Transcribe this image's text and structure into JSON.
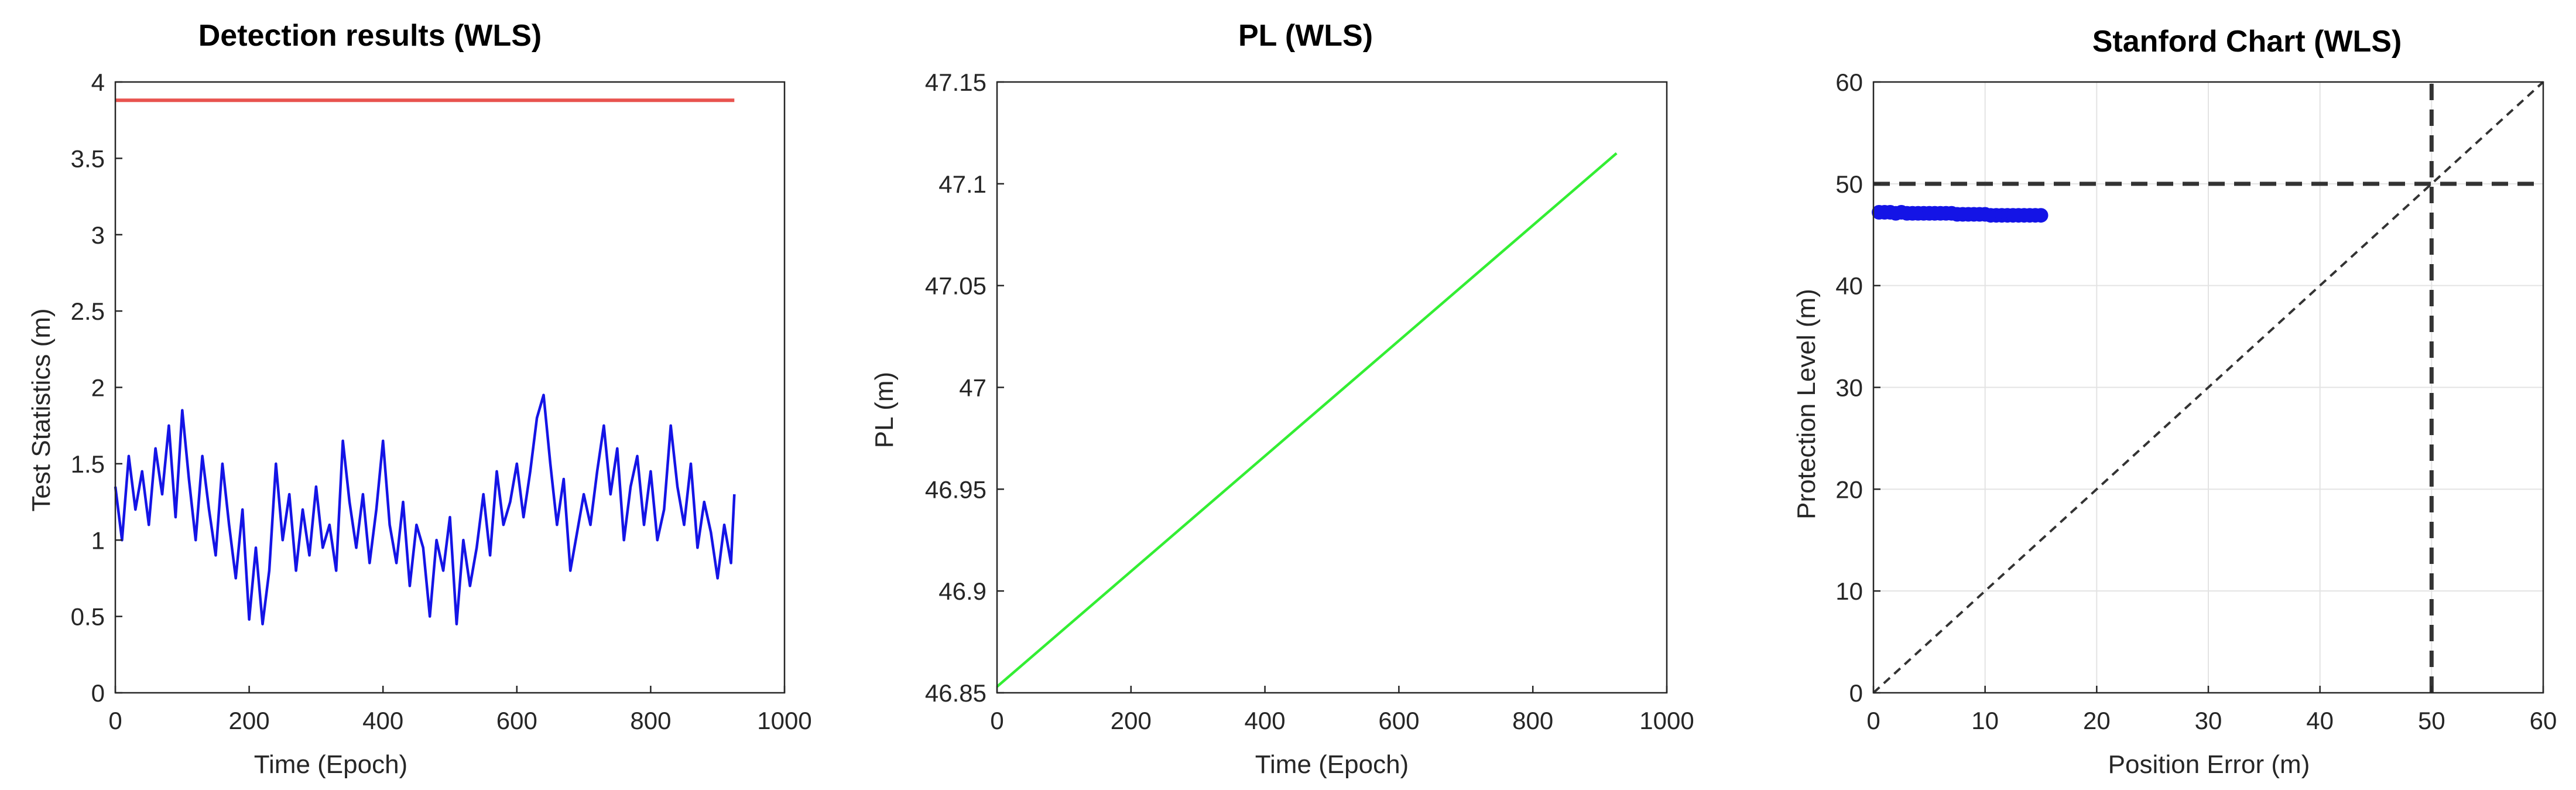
{
  "chart_data": [
    {
      "type": "line",
      "title": "Detection results (WLS)",
      "xlabel": "Time (Epoch)",
      "ylabel": "Test Statistics (m)",
      "xlim": [
        0,
        1000
      ],
      "ylim": [
        0,
        4
      ],
      "xticks": [
        "0",
        "200",
        "400",
        "600",
        "800",
        "1000"
      ],
      "yticks": [
        "0",
        "0.5",
        "1",
        "1.5",
        "2",
        "2.5",
        "3",
        "3.5",
        "4"
      ],
      "grid": false,
      "series": [
        {
          "color": "#e8534f",
          "style": "solid",
          "x": [
            0,
            925
          ],
          "y": [
            3.88,
            3.88
          ]
        },
        {
          "color": "#1414e6",
          "style": "solid",
          "x": [
            0,
            10,
            20,
            30,
            40,
            50,
            60,
            70,
            80,
            90,
            100,
            110,
            120,
            130,
            140,
            150,
            160,
            170,
            180,
            190,
            200,
            210,
            220,
            230,
            240,
            250,
            260,
            270,
            280,
            290,
            300,
            310,
            320,
            330,
            340,
            350,
            360,
            370,
            380,
            390,
            400,
            410,
            420,
            430,
            440,
            450,
            460,
            470,
            480,
            490,
            500,
            510,
            520,
            530,
            540,
            550,
            560,
            570,
            580,
            590,
            600,
            610,
            620,
            630,
            640,
            650,
            660,
            670,
            680,
            690,
            700,
            710,
            720,
            730,
            740,
            750,
            760,
            770,
            780,
            790,
            800,
            810,
            820,
            830,
            840,
            850,
            860,
            870,
            880,
            890,
            900,
            910,
            920,
            925
          ],
          "y": [
            1.35,
            1.0,
            1.55,
            1.2,
            1.45,
            1.1,
            1.6,
            1.3,
            1.75,
            1.15,
            1.85,
            1.4,
            1.0,
            1.55,
            1.2,
            0.9,
            1.5,
            1.1,
            0.75,
            1.2,
            0.48,
            0.95,
            0.45,
            0.8,
            1.5,
            1.0,
            1.3,
            0.8,
            1.2,
            0.9,
            1.35,
            0.95,
            1.1,
            0.8,
            1.65,
            1.25,
            0.95,
            1.3,
            0.85,
            1.2,
            1.65,
            1.1,
            0.85,
            1.25,
            0.7,
            1.1,
            0.95,
            0.5,
            1.0,
            0.8,
            1.15,
            0.45,
            1.0,
            0.7,
            0.95,
            1.3,
            0.9,
            1.45,
            1.1,
            1.25,
            1.5,
            1.15,
            1.45,
            1.8,
            1.95,
            1.5,
            1.1,
            1.4,
            0.8,
            1.05,
            1.3,
            1.1,
            1.45,
            1.75,
            1.3,
            1.6,
            1.0,
            1.35,
            1.55,
            1.1,
            1.45,
            1.0,
            1.2,
            1.75,
            1.35,
            1.1,
            1.5,
            0.95,
            1.25,
            1.05,
            0.75,
            1.1,
            0.85,
            1.3
          ]
        }
      ]
    },
    {
      "type": "line",
      "title": "PL (WLS)",
      "xlabel": "Time (Epoch)",
      "ylabel": "PL (m)",
      "xlim": [
        0,
        1000
      ],
      "ylim": [
        46.85,
        47.15
      ],
      "xticks": [
        "0",
        "200",
        "400",
        "600",
        "800",
        "1000"
      ],
      "yticks": [
        "46.85",
        "46.9",
        "46.95",
        "47",
        "47.05",
        "47.1",
        "47.15"
      ],
      "grid": false,
      "series": [
        {
          "color": "#33ee33",
          "style": "solid",
          "x": [
            0,
            925
          ],
          "y": [
            46.853,
            47.115
          ]
        }
      ]
    },
    {
      "type": "scatter",
      "title": "Stanford Chart (WLS)",
      "xlabel": "Position Error (m)",
      "ylabel": "Protection Level (m)",
      "xlim": [
        0,
        60
      ],
      "ylim": [
        0,
        60
      ],
      "xticks": [
        "0",
        "10",
        "20",
        "30",
        "40",
        "50",
        "60"
      ],
      "yticks": [
        "0",
        "10",
        "20",
        "30",
        "40",
        "50",
        "60"
      ],
      "grid": true,
      "points": {
        "color": "#1414e6",
        "x": [
          0.5,
          1.0,
          1.5,
          2.0,
          2.5,
          3.0,
          3.5,
          4.0,
          4.5,
          5.0,
          5.5,
          6.0,
          6.5,
          7.0,
          7.5,
          8.0,
          8.5,
          9.0,
          9.5,
          10.0,
          10.5,
          11.0,
          11.5,
          12.0,
          12.5,
          13.0,
          13.5,
          14.0,
          14.5,
          15.0
        ],
        "y": [
          47.2,
          47.2,
          47.2,
          47.1,
          47.2,
          47.1,
          47.1,
          47.1,
          47.1,
          47.1,
          47.1,
          47.1,
          47.1,
          47.1,
          47.0,
          47.0,
          47.0,
          47.0,
          47.0,
          47.0,
          46.9,
          46.9,
          46.9,
          46.9,
          46.9,
          46.9,
          46.9,
          46.9,
          46.9,
          46.9
        ]
      },
      "reference_lines": [
        {
          "style": "dashed",
          "color": "#333333",
          "x": [
            0,
            60
          ],
          "y": [
            0,
            60
          ]
        },
        {
          "style": "dashed",
          "color": "#333333",
          "x": [
            50,
            50
          ],
          "y": [
            0,
            60
          ]
        },
        {
          "style": "dashed",
          "color": "#333333",
          "x": [
            0,
            60
          ],
          "y": [
            50,
            50
          ]
        }
      ]
    }
  ]
}
